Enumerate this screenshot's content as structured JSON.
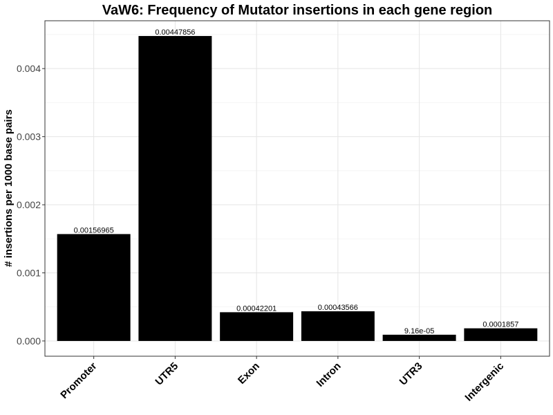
{
  "chart_data": {
    "type": "bar",
    "title": "VaW6: Frequency of Mutator insertions in each gene region",
    "xlabel": "",
    "ylabel": "# insertions per 1000 base pairs",
    "categories": [
      "Promoter",
      "UTR5",
      "Exon",
      "Intron",
      "UTR3",
      "Intergenic"
    ],
    "values": [
      0.00156965,
      0.00447856,
      0.00042201,
      0.00043566,
      9.16e-05,
      0.0001857
    ],
    "value_labels": [
      "0.00156965",
      "0.00447856",
      "0.00042201",
      "0.00043566",
      "9.16e-05",
      "0.0001857"
    ],
    "yticks": [
      0,
      0.001,
      0.002,
      0.003,
      0.004
    ],
    "ytick_labels": [
      "0.000",
      "0.001",
      "0.002",
      "0.003",
      "0.004"
    ],
    "ylim": [
      -0.000224,
      0.0047025
    ],
    "grid": true,
    "legend": "none",
    "colors": {
      "bar": "#000000",
      "panel_border": "#333333",
      "grid_major": "#e5e5e5",
      "grid_minor": "#f2f2f2"
    }
  }
}
